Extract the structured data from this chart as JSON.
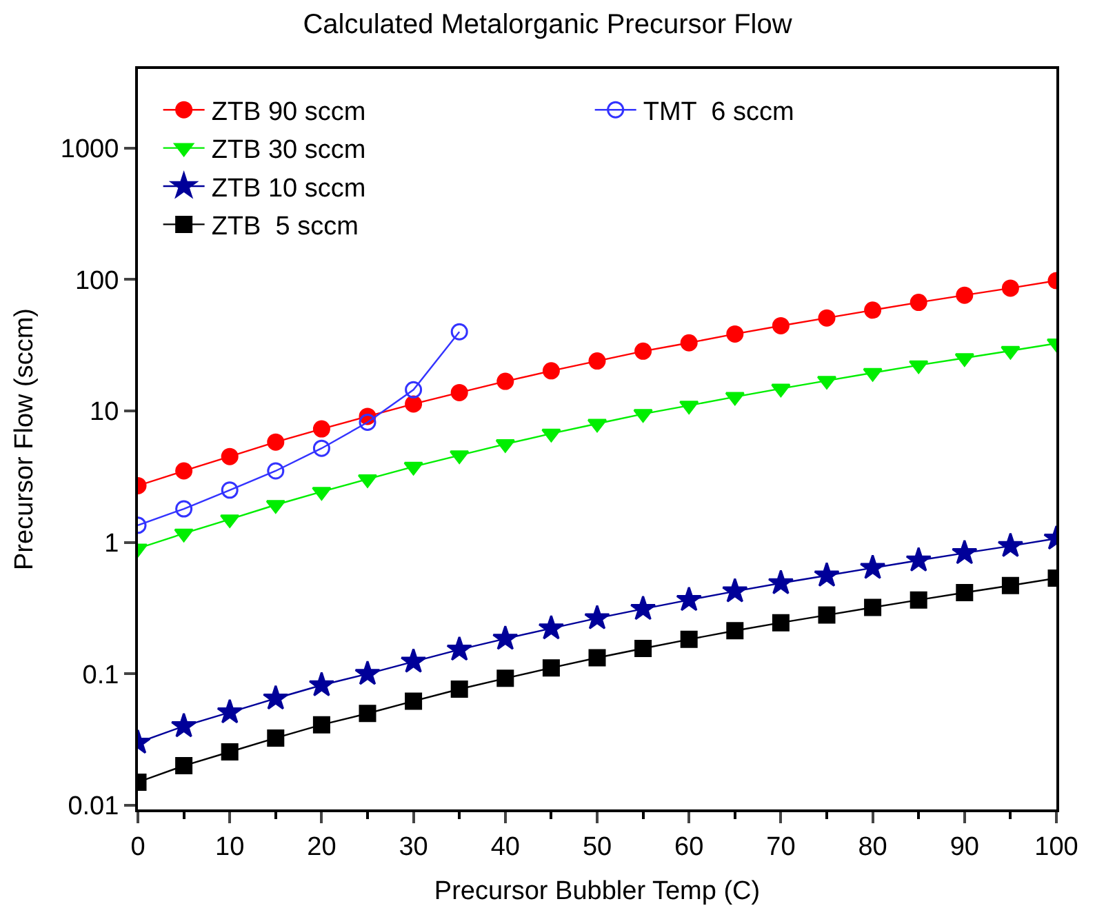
{
  "chart_data": {
    "type": "line",
    "title": "Calculated Metalorganic Precursor Flow",
    "xlabel": "Precursor Bubbler Temp (C)",
    "ylabel": "Precursor Flow (sccm)",
    "x": [
      0,
      5,
      10,
      15,
      20,
      25,
      30,
      35,
      40,
      45,
      50,
      55,
      60,
      65,
      70,
      75,
      80,
      85,
      90,
      95,
      100
    ],
    "series": [
      {
        "name": "ZTB 90 sccm",
        "color": "#ff0000",
        "marker": "circle",
        "values": [
          2.7,
          3.5,
          4.5,
          5.8,
          7.3,
          9.1,
          11.3,
          13.8,
          16.8,
          20.2,
          24,
          28.5,
          33,
          38.5,
          44.5,
          51,
          58.5,
          67,
          76,
          86,
          98
        ]
      },
      {
        "name": "ZTB 30 sccm",
        "color": "#00ee00",
        "marker": "triangle",
        "values": [
          0.9,
          1.17,
          1.5,
          1.93,
          2.43,
          3.03,
          3.77,
          4.6,
          5.6,
          6.73,
          8,
          9.5,
          11,
          12.8,
          14.8,
          17,
          19.5,
          22.3,
          25.3,
          28.7,
          32.7
        ]
      },
      {
        "name": "ZTB 10 sccm",
        "color": "#000099",
        "marker": "star",
        "values": [
          0.03,
          0.04,
          0.051,
          0.065,
          0.082,
          0.1,
          0.124,
          0.153,
          0.185,
          0.222,
          0.265,
          0.312,
          0.365,
          0.425,
          0.49,
          0.56,
          0.64,
          0.73,
          0.83,
          0.94,
          1.07
        ]
      },
      {
        "name": "ZTB  5 sccm",
        "color": "#000000",
        "marker": "square",
        "values": [
          0.015,
          0.02,
          0.0255,
          0.0325,
          0.041,
          0.05,
          0.062,
          0.0765,
          0.0925,
          0.111,
          0.1325,
          0.156,
          0.183,
          0.213,
          0.245,
          0.28,
          0.32,
          0.365,
          0.415,
          0.47,
          0.535
        ]
      },
      {
        "name": "TMT  6 sccm",
        "color": "#3333ff",
        "marker": "circle-open",
        "x": [
          0,
          5,
          10,
          15,
          20,
          25,
          30,
          35
        ],
        "values": [
          1.35,
          1.8,
          2.5,
          3.5,
          5.2,
          8.2,
          14.5,
          40
        ]
      }
    ],
    "log": "y",
    "xlim": [
      0,
      100
    ],
    "xticks": [
      0,
      10,
      20,
      30,
      40,
      50,
      60,
      70,
      80,
      90,
      100
    ],
    "ylim": [
      0.0093,
      4000
    ],
    "yticks": [
      0.01,
      0.1,
      1,
      10,
      100,
      1000
    ],
    "legend": "top left",
    "line_style": "solid"
  }
}
